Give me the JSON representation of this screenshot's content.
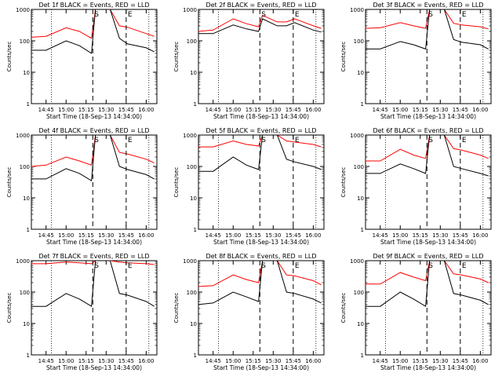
{
  "chart_data": [
    {
      "type": "line",
      "title": "Det 1f BLACK = Events, RED = LLD",
      "xlabel": "Start Time (18-Sep-13 14:34:00)",
      "ylabel": "Counts/sec",
      "yscale": "log",
      "ylim": [
        1,
        1000
      ],
      "ytick_labels": [
        "1",
        "10",
        "100",
        "1000"
      ],
      "xtick_labels": [
        "14:45",
        "15:00",
        "15:15",
        "15:30",
        "15:45",
        "16:00"
      ],
      "markers": [
        {
          "label": "S",
          "x": "15:20"
        },
        {
          "label": "E",
          "x": "15:45"
        }
      ],
      "series": [
        {
          "color": "#ff0000",
          "x": [
            "14:34",
            "14:45",
            "15:00",
            "15:10",
            "15:19",
            "15:22",
            "15:33",
            "15:40",
            "15:46",
            "16:00",
            "16:06"
          ],
          "values": [
            130,
            140,
            260,
            200,
            120,
            1000,
            1000,
            300,
            270,
            170,
            140
          ]
        },
        {
          "color": "#000000",
          "x": [
            "14:34",
            "14:45",
            "15:00",
            "15:10",
            "15:19",
            "15:22",
            "15:33",
            "15:40",
            "15:46",
            "16:00",
            "16:06"
          ],
          "values": [
            50,
            50,
            100,
            70,
            40,
            1000,
            1000,
            120,
            80,
            60,
            45
          ]
        }
      ]
    },
    {
      "type": "line",
      "title": "Det 2f BLACK = Events, RED = LLD",
      "xlabel": "Start Time (18-Sep-13 14:34:00)",
      "ylabel": "Counts/sec",
      "yscale": "log",
      "ylim": [
        1,
        1000
      ],
      "ytick_labels": [
        "1",
        "10",
        "100",
        "1000"
      ],
      "xtick_labels": [
        "14:45",
        "15:00",
        "15:15",
        "15:30",
        "15:45",
        "16:00"
      ],
      "markers": [
        {
          "label": "S",
          "x": "15:20"
        },
        {
          "label": "E",
          "x": "15:45"
        }
      ],
      "series": [
        {
          "color": "#ff0000",
          "x": [
            "14:34",
            "14:45",
            "15:00",
            "15:10",
            "15:19",
            "15:22",
            "15:33",
            "15:40",
            "15:46",
            "16:00",
            "16:06"
          ],
          "values": [
            200,
            220,
            500,
            350,
            280,
            650,
            400,
            400,
            500,
            300,
            250
          ]
        },
        {
          "color": "#000000",
          "x": [
            "14:34",
            "14:45",
            "15:00",
            "15:10",
            "15:19",
            "15:22",
            "15:33",
            "15:40",
            "15:46",
            "16:00",
            "16:06"
          ],
          "values": [
            170,
            170,
            320,
            240,
            200,
            500,
            300,
            300,
            380,
            220,
            190
          ]
        }
      ]
    },
    {
      "type": "line",
      "title": "Det 3f BLACK = Events, RED = LLD",
      "xlabel": "Start Time (18-Sep-13 14:34:00)",
      "ylabel": "Counts/sec",
      "yscale": "log",
      "ylim": [
        1,
        1000
      ],
      "ytick_labels": [
        "1",
        "10",
        "100",
        "1000"
      ],
      "xtick_labels": [
        "14:45",
        "15:00",
        "15:15",
        "15:30",
        "15:45",
        "16:00"
      ],
      "markers": [
        {
          "label": "S",
          "x": "15:20"
        },
        {
          "label": "E",
          "x": "15:45"
        }
      ],
      "series": [
        {
          "color": "#ff0000",
          "x": [
            "14:34",
            "14:45",
            "15:00",
            "15:10",
            "15:19",
            "15:22",
            "15:33",
            "15:40",
            "15:46",
            "16:00",
            "16:06"
          ],
          "values": [
            250,
            260,
            380,
            300,
            250,
            1000,
            1000,
            360,
            320,
            280,
            240
          ]
        },
        {
          "color": "#000000",
          "x": [
            "14:34",
            "14:45",
            "15:00",
            "15:10",
            "15:19",
            "15:22",
            "15:33",
            "15:40",
            "15:46",
            "16:00",
            "16:06"
          ],
          "values": [
            55,
            55,
            95,
            75,
            55,
            1000,
            1000,
            110,
            90,
            75,
            55
          ]
        }
      ]
    },
    {
      "type": "line",
      "title": "Det 4f BLACK = Events, RED = LLD",
      "xlabel": "Start Time (18-Sep-13 14:34:00)",
      "ylabel": "Counts/sec",
      "yscale": "log",
      "ylim": [
        1,
        1000
      ],
      "ytick_labels": [
        "1",
        "10",
        "100",
        "1000"
      ],
      "xtick_labels": [
        "14:45",
        "15:00",
        "15:15",
        "15:30",
        "15:45",
        "16:00"
      ],
      "markers": [
        {
          "label": "S",
          "x": "15:20"
        },
        {
          "label": "E",
          "x": "15:45"
        }
      ],
      "series": [
        {
          "color": "#ff0000",
          "x": [
            "14:34",
            "14:45",
            "15:00",
            "15:10",
            "15:19",
            "15:22",
            "15:33",
            "15:40",
            "15:46",
            "16:00",
            "16:06"
          ],
          "values": [
            100,
            110,
            200,
            150,
            110,
            1000,
            1000,
            280,
            250,
            170,
            130
          ]
        },
        {
          "color": "#000000",
          "x": [
            "14:34",
            "14:45",
            "15:00",
            "15:10",
            "15:19",
            "15:22",
            "15:33",
            "15:40",
            "15:46",
            "16:00",
            "16:06"
          ],
          "values": [
            40,
            40,
            85,
            60,
            35,
            1000,
            1000,
            100,
            80,
            55,
            40
          ]
        }
      ]
    },
    {
      "type": "line",
      "title": "Det 5f BLACK = Events, RED = LLD",
      "xlabel": "Start Time (18-Sep-13 14:34:00)",
      "ylabel": "Counts/sec",
      "yscale": "log",
      "ylim": [
        1,
        1000
      ],
      "ytick_labels": [
        "1",
        "10",
        "100",
        "1000"
      ],
      "xtick_labels": [
        "14:45",
        "15:00",
        "15:15",
        "15:30",
        "15:45",
        "16:00"
      ],
      "markers": [
        {
          "label": "S",
          "x": "15:20"
        },
        {
          "label": "E",
          "x": "15:45"
        }
      ],
      "series": [
        {
          "color": "#ff0000",
          "x": [
            "14:34",
            "14:45",
            "15:00",
            "15:10",
            "15:19",
            "15:22",
            "15:33",
            "15:40",
            "15:46",
            "16:00",
            "16:06"
          ],
          "values": [
            420,
            420,
            650,
            500,
            450,
            1000,
            1000,
            650,
            600,
            500,
            420
          ]
        },
        {
          "color": "#000000",
          "x": [
            "14:34",
            "14:45",
            "15:00",
            "15:10",
            "15:19",
            "15:22",
            "15:33",
            "15:40",
            "15:46",
            "16:00",
            "16:06"
          ],
          "values": [
            70,
            70,
            200,
            110,
            80,
            1000,
            1000,
            170,
            140,
            100,
            80
          ]
        }
      ]
    },
    {
      "type": "line",
      "title": "Det 6f BLACK = Events, RED = LLD",
      "xlabel": "Start Time (18-Sep-13 14:34:00)",
      "ylabel": "Counts/sec",
      "yscale": "log",
      "ylim": [
        1,
        1000
      ],
      "ytick_labels": [
        "1",
        "10",
        "100",
        "1000"
      ],
      "xtick_labels": [
        "14:45",
        "15:00",
        "15:15",
        "15:30",
        "15:45",
        "16:00"
      ],
      "markers": [
        {
          "label": "S",
          "x": "15:20"
        },
        {
          "label": "E",
          "x": "15:45"
        }
      ],
      "series": [
        {
          "color": "#ff0000",
          "x": [
            "14:34",
            "14:45",
            "15:00",
            "15:10",
            "15:19",
            "15:22",
            "15:33",
            "15:40",
            "15:46",
            "16:00",
            "16:06"
          ],
          "values": [
            150,
            150,
            350,
            230,
            180,
            1000,
            1000,
            370,
            330,
            230,
            180
          ]
        },
        {
          "color": "#000000",
          "x": [
            "14:34",
            "14:45",
            "15:00",
            "15:10",
            "15:19",
            "15:22",
            "15:33",
            "15:40",
            "15:46",
            "16:00",
            "16:06"
          ],
          "values": [
            60,
            60,
            120,
            85,
            60,
            1000,
            1000,
            100,
            85,
            60,
            50
          ]
        }
      ]
    },
    {
      "type": "line",
      "title": "Det 7f BLACK = Events, RED = LLD",
      "xlabel": "Start Time (18-Sep-13 14:34:00)",
      "ylabel": "Counts/sec",
      "yscale": "log",
      "ylim": [
        1,
        1000
      ],
      "ytick_labels": [
        "1",
        "10",
        "100",
        "1000"
      ],
      "xtick_labels": [
        "14:45",
        "15:00",
        "15:15",
        "15:30",
        "15:45",
        "16:00"
      ],
      "markers": [
        {
          "label": "S",
          "x": "15:20"
        },
        {
          "label": "E",
          "x": "15:45"
        }
      ],
      "series": [
        {
          "color": "#ff0000",
          "x": [
            "14:34",
            "14:45",
            "15:00",
            "15:10",
            "15:19",
            "15:22",
            "15:33",
            "15:40",
            "15:46",
            "16:00",
            "16:06"
          ],
          "values": [
            800,
            800,
            900,
            850,
            800,
            1000,
            1000,
            900,
            850,
            800,
            750
          ]
        },
        {
          "color": "#000000",
          "x": [
            "14:34",
            "14:45",
            "15:00",
            "15:10",
            "15:19",
            "15:22",
            "15:33",
            "15:40",
            "15:46",
            "16:00",
            "16:06"
          ],
          "values": [
            35,
            35,
            90,
            60,
            35,
            1000,
            1000,
            90,
            80,
            50,
            35
          ]
        }
      ]
    },
    {
      "type": "line",
      "title": "Det 8f BLACK = Events, RED = LLD",
      "xlabel": "Start Time (18-Sep-13 14:34:00)",
      "ylabel": "Counts/sec",
      "yscale": "log",
      "ylim": [
        1,
        1000
      ],
      "ytick_labels": [
        "1",
        "10",
        "100",
        "1000"
      ],
      "xtick_labels": [
        "14:45",
        "15:00",
        "15:15",
        "15:30",
        "15:45",
        "16:00"
      ],
      "markers": [
        {
          "label": "S",
          "x": "15:20"
        },
        {
          "label": "E",
          "x": "15:45"
        }
      ],
      "series": [
        {
          "color": "#ff0000",
          "x": [
            "14:34",
            "14:45",
            "15:00",
            "15:10",
            "15:19",
            "15:22",
            "15:33",
            "15:40",
            "15:46",
            "16:00",
            "16:06"
          ],
          "values": [
            150,
            160,
            350,
            250,
            200,
            1000,
            1000,
            350,
            330,
            230,
            170
          ]
        },
        {
          "color": "#000000",
          "x": [
            "14:34",
            "14:45",
            "15:00",
            "15:10",
            "15:19",
            "15:22",
            "15:33",
            "15:40",
            "15:46",
            "16:00",
            "16:06"
          ],
          "values": [
            40,
            45,
            100,
            70,
            50,
            1000,
            1000,
            100,
            90,
            60,
            45
          ]
        }
      ]
    },
    {
      "type": "line",
      "title": "Det 9f BLACK = Events, RED = LLD",
      "xlabel": "Start Time (18-Sep-13 14:34:00)",
      "ylabel": "Counts/sec",
      "yscale": "log",
      "ylim": [
        1,
        1000
      ],
      "ytick_labels": [
        "1",
        "10",
        "100",
        "1000"
      ],
      "xtick_labels": [
        "14:45",
        "15:00",
        "15:15",
        "15:30",
        "15:45",
        "16:00"
      ],
      "markers": [
        {
          "label": "S",
          "x": "15:20"
        },
        {
          "label": "E",
          "x": "15:45"
        }
      ],
      "series": [
        {
          "color": "#ff0000",
          "x": [
            "14:34",
            "14:45",
            "15:00",
            "15:10",
            "15:19",
            "15:22",
            "15:33",
            "15:40",
            "15:46",
            "16:00",
            "16:06"
          ],
          "values": [
            180,
            180,
            420,
            300,
            230,
            1000,
            1000,
            380,
            350,
            260,
            200
          ]
        },
        {
          "color": "#000000",
          "x": [
            "14:34",
            "14:45",
            "15:00",
            "15:10",
            "15:19",
            "15:22",
            "15:33",
            "15:40",
            "15:46",
            "16:00",
            "16:06"
          ],
          "values": [
            35,
            35,
            100,
            60,
            35,
            1000,
            1000,
            90,
            80,
            55,
            40
          ]
        }
      ]
    }
  ]
}
